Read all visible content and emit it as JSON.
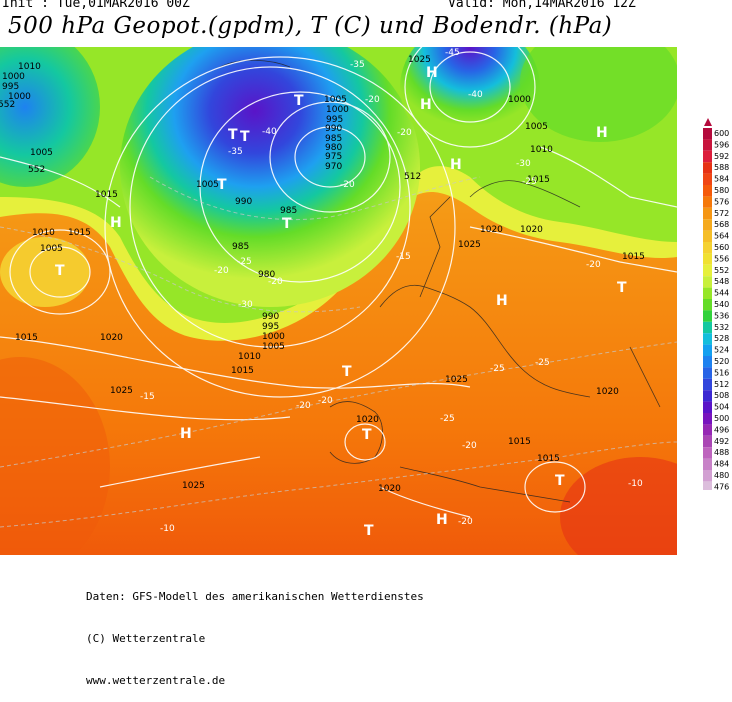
{
  "header": {
    "init": "Init : Tue,01MAR2016 00Z",
    "valid": "Valid: Mon,14MAR2016 12Z",
    "title": "500 hPa Geopot.(gpdm), T (C) und Bodendr. (hPa)"
  },
  "legend": {
    "unit_hint": "gpdm",
    "levels": [
      "600",
      "596",
      "592",
      "588",
      "584",
      "580",
      "576",
      "572",
      "568",
      "564",
      "560",
      "556",
      "552",
      "548",
      "544",
      "540",
      "536",
      "532",
      "528",
      "524",
      "520",
      "516",
      "512",
      "508",
      "504",
      "500",
      "496",
      "492",
      "488",
      "484",
      "480",
      "476"
    ],
    "colors": [
      "#b40a3c",
      "#c8143c",
      "#dc1e3c",
      "#e63214",
      "#f04614",
      "#f55a0a",
      "#f5780a",
      "#f59614",
      "#f5aa1e",
      "#f5be28",
      "#f5d232",
      "#f0e132",
      "#e6f03c",
      "#c8f03c",
      "#96e628",
      "#64dc28",
      "#32d23c",
      "#14c8a0",
      "#14bedc",
      "#14a0f0",
      "#1e82f0",
      "#2864e6",
      "#3246dc",
      "#3c28d2",
      "#5a14c8",
      "#7814be",
      "#9628b4",
      "#aa46b4",
      "#be64be",
      "#c882c8",
      "#d2a0d2",
      "#dcbedc"
    ]
  },
  "map_labels": {
    "pressure": [
      "1010",
      "1000",
      "995",
      "1000",
      "552",
      "1005",
      "1010",
      "1005",
      "1015",
      "1015",
      "1020",
      "1025",
      "1005",
      "1000",
      "995",
      "990",
      "985",
      "980",
      "975",
      "970",
      "1005",
      "990",
      "985",
      "985",
      "980",
      "990",
      "995",
      "1000",
      "1005",
      "1010",
      "1015",
      "1025",
      "1020",
      "1025",
      "1015",
      "1020",
      "1025",
      "1000",
      "1005",
      "1010",
      "1015",
      "1020",
      "1020",
      "1015",
      "1015",
      "1025",
      "1020",
      "1015"
    ],
    "temperature": [
      "-35",
      "-20",
      "-45",
      "-40",
      "-35",
      "-40",
      "-30",
      "-30",
      "-25",
      "-20",
      "-15",
      "-20",
      "-20",
      "-25",
      "-25",
      "-20",
      "-25",
      "-20",
      "-15",
      "-10",
      "-10",
      "-20",
      "-20",
      "-25",
      "-20",
      "-20"
    ],
    "pressure_centers": [
      "T",
      "T",
      "H",
      "H",
      "T",
      "T",
      "H",
      "H",
      "T",
      "T",
      "T",
      "H",
      "H",
      "T",
      "T",
      "H",
      "T",
      "H",
      "T"
    ],
    "isoline_552": "552",
    "isoline_512": "512"
  },
  "footer": {
    "line1": "Daten: GFS-Modell des amerikanischen Wetterdienstes",
    "line2": "(C) Wetterzentrale",
    "line3": "www.wetterzentrale.de"
  }
}
